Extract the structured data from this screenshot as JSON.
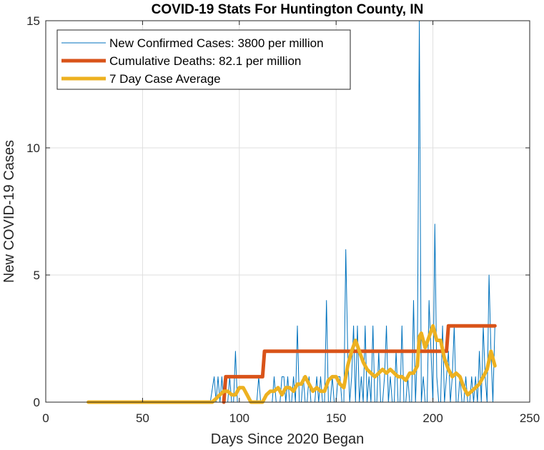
{
  "chart_data": {
    "type": "line",
    "title": "COVID-19 Stats For Huntington County, IN",
    "xlabel": "Days Since 2020 Began",
    "ylabel": "New COVID-19 Cases",
    "xlim": [
      0,
      250
    ],
    "ylim": [
      0,
      15
    ],
    "xticks": [
      0,
      50,
      100,
      150,
      200,
      250
    ],
    "yticks": [
      0,
      5,
      10,
      15
    ],
    "grid": true,
    "legend_position": "top-left",
    "series": [
      {
        "name": "New Confirmed Cases: 3800 per million",
        "color": "#0072BD",
        "line_width": "thin",
        "x": [
          22,
          85,
          87,
          88,
          89,
          90,
          91,
          92,
          93,
          94,
          95,
          96,
          97,
          98,
          99,
          100,
          101,
          102,
          103,
          104,
          105,
          106,
          107,
          108,
          109,
          110,
          111,
          112,
          113,
          114,
          115,
          116,
          117,
          118,
          119,
          120,
          121,
          122,
          123,
          124,
          125,
          126,
          127,
          128,
          129,
          130,
          131,
          132,
          133,
          134,
          135,
          136,
          137,
          138,
          139,
          140,
          141,
          142,
          143,
          144,
          145,
          146,
          147,
          148,
          149,
          150,
          151,
          152,
          153,
          154,
          155,
          156,
          157,
          158,
          159,
          160,
          161,
          162,
          163,
          164,
          165,
          166,
          167,
          168,
          169,
          170,
          171,
          172,
          173,
          174,
          175,
          176,
          177,
          178,
          179,
          180,
          181,
          182,
          183,
          184,
          185,
          186,
          187,
          188,
          189,
          190,
          191,
          192,
          193,
          194,
          195,
          196,
          197,
          198,
          199,
          200,
          201,
          202,
          203,
          204,
          205,
          206,
          207,
          208,
          209,
          210,
          211,
          212,
          213,
          214,
          215,
          216,
          217,
          218,
          219,
          220,
          221,
          222,
          223,
          224,
          225,
          226,
          227,
          228,
          229,
          230,
          231,
          232
        ],
        "y": [
          0,
          0,
          1,
          0,
          1,
          0,
          1,
          0,
          0,
          0,
          1,
          0,
          0,
          2,
          0,
          0,
          0,
          0,
          0,
          0,
          0,
          0,
          0,
          0,
          0,
          1,
          0,
          0,
          0,
          0,
          0,
          0,
          0,
          1,
          0,
          0,
          0,
          1,
          1,
          0,
          1,
          0,
          0,
          1,
          0,
          3,
          0,
          0,
          1,
          0,
          0,
          1,
          0,
          0,
          0,
          1,
          0,
          1,
          0,
          0,
          4,
          0,
          0,
          1,
          0,
          0,
          1,
          1,
          0,
          0,
          6,
          2,
          0,
          1,
          3,
          0,
          3,
          0,
          1,
          0,
          3,
          0,
          1,
          0,
          3,
          0,
          0,
          2,
          0,
          0,
          1,
          3,
          0,
          1,
          0,
          0,
          2,
          0,
          0,
          3,
          0,
          0,
          1,
          0,
          0,
          4,
          0,
          2,
          15,
          0,
          1,
          0,
          0,
          4,
          2,
          0,
          7,
          1,
          0,
          0,
          3,
          0,
          1,
          2,
          0,
          1,
          3,
          0,
          0,
          1,
          0,
          0,
          1,
          0,
          0,
          1,
          0,
          1,
          0,
          2,
          0,
          3,
          1,
          0,
          5,
          2,
          0,
          3
        ]
      },
      {
        "name": "Cumulative Deaths: 82.1 per million",
        "color": "#D95319",
        "line_width": "thick",
        "x": [
          92,
          93,
          112,
          113,
          207,
          208,
          232
        ],
        "y": [
          0,
          1,
          1,
          2,
          2,
          3,
          3
        ]
      },
      {
        "name": "7 Day Case Average",
        "color": "#EDB120",
        "line_width": "thick",
        "x": [
          22,
          86,
          88,
          90,
          92,
          94,
          96,
          98,
          100,
          102,
          104,
          106,
          108,
          110,
          112,
          114,
          116,
          118,
          120,
          122,
          124,
          126,
          128,
          130,
          132,
          134,
          136,
          138,
          140,
          142,
          144,
          146,
          148,
          150,
          152,
          154,
          156,
          158,
          160,
          162,
          164,
          166,
          168,
          170,
          172,
          174,
          176,
          178,
          180,
          182,
          184,
          186,
          188,
          190,
          192,
          193,
          194,
          196,
          198,
          200,
          202,
          204,
          206,
          208,
          210,
          212,
          214,
          216,
          218,
          220,
          222,
          224,
          226,
          228,
          230,
          232
        ],
        "y": [
          0,
          0,
          0.14,
          0.29,
          0.43,
          0.43,
          0.29,
          0.29,
          0.57,
          0.57,
          0.29,
          0,
          0,
          0,
          0,
          0.29,
          0.43,
          0.43,
          0.57,
          0.29,
          0.57,
          0.57,
          0.43,
          0.71,
          0.71,
          1.0,
          0.71,
          0.43,
          0.57,
          0.43,
          0.43,
          0.86,
          1.0,
          1.0,
          0.71,
          0.57,
          1.43,
          2.0,
          2.43,
          2.0,
          1.57,
          1.29,
          1.14,
          1.0,
          1.14,
          1.29,
          1.14,
          1.29,
          1.14,
          1.0,
          1.0,
          0.86,
          1.14,
          1.14,
          1.43,
          2.57,
          2.71,
          2.14,
          2.57,
          3.0,
          2.43,
          2.43,
          1.71,
          1.29,
          1.0,
          1.14,
          1.0,
          0.57,
          0.29,
          0.43,
          0.57,
          0.71,
          1.0,
          1.29,
          2.0,
          1.43
        ]
      }
    ]
  }
}
